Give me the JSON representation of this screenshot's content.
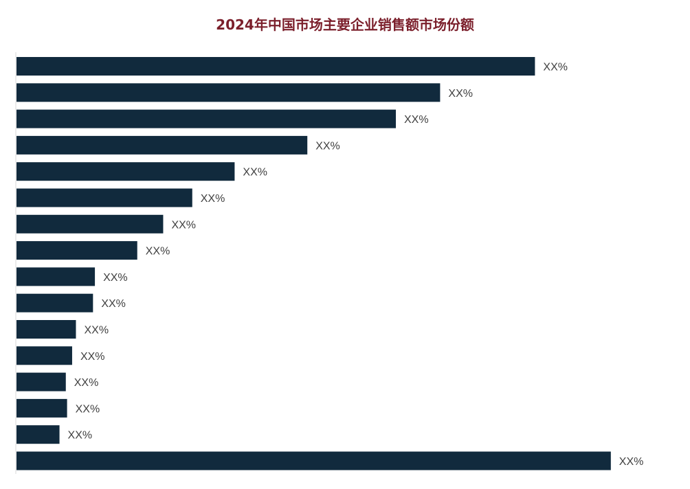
{
  "chart_data": {
    "type": "bar",
    "orientation": "horizontal",
    "title": "2024年中国市场主要企业销售额市场份额",
    "xlabel": "",
    "ylabel": "",
    "xlim": [
      0,
      100
    ],
    "grid": false,
    "legend": "none",
    "values": [
      82,
      67,
      60,
      46,
      34.5,
      27.8,
      23.2,
      19.1,
      12.4,
      12.1,
      9.4,
      8.8,
      7.8,
      8.0,
      6.8,
      94
    ],
    "value_labels": [
      "XX%",
      "XX%",
      "XX%",
      "XX%",
      "XX%",
      "XX%",
      "XX%",
      "XX%",
      "XX%",
      "XX%",
      "XX%",
      "XX%",
      "XX%",
      "XX%",
      "XX%",
      "XX%"
    ],
    "bar_color": "#112a3d",
    "title_color": "#7b1f2b"
  }
}
